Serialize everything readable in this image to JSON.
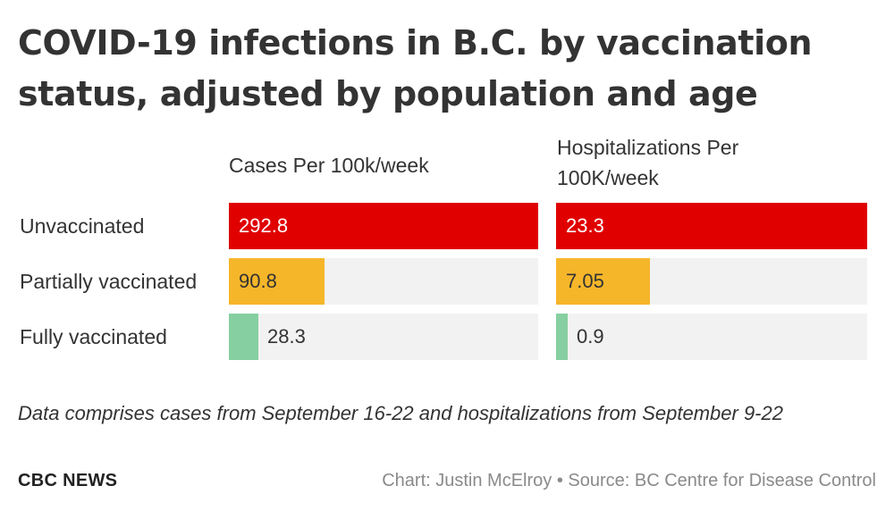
{
  "title": "COVID-19 infections in B.C. by vaccination status, adjusted by population and age",
  "note": "Data comprises cases from September 16-22 and hospitalizations from September 9-22",
  "brand": "CBC NEWS",
  "credit": "Chart: Justin McElroy • Source: BC Centre for Disease Control",
  "colors": {
    "Unvaccinated": "#e00000",
    "Partially vaccinated": "#f6b62a",
    "Fully vaccinated": "#86cfa0",
    "track": "#f2f2f2"
  },
  "chart_data": {
    "type": "bar",
    "orientation": "horizontal",
    "categories": [
      "Unvaccinated",
      "Partially vaccinated",
      "Fully vaccinated"
    ],
    "series": [
      {
        "name": "Cases Per 100k/week",
        "values": [
          292.8,
          90.8,
          28.3
        ],
        "labels": [
          "292.8",
          "90.8",
          "28.3"
        ],
        "max": 292.8
      },
      {
        "name": "Hospitalizations Per 100K/week",
        "values": [
          23.3,
          7.05,
          0.9
        ],
        "labels": [
          "23.3",
          "7.05",
          "0.9"
        ],
        "max": 23.3
      }
    ]
  }
}
